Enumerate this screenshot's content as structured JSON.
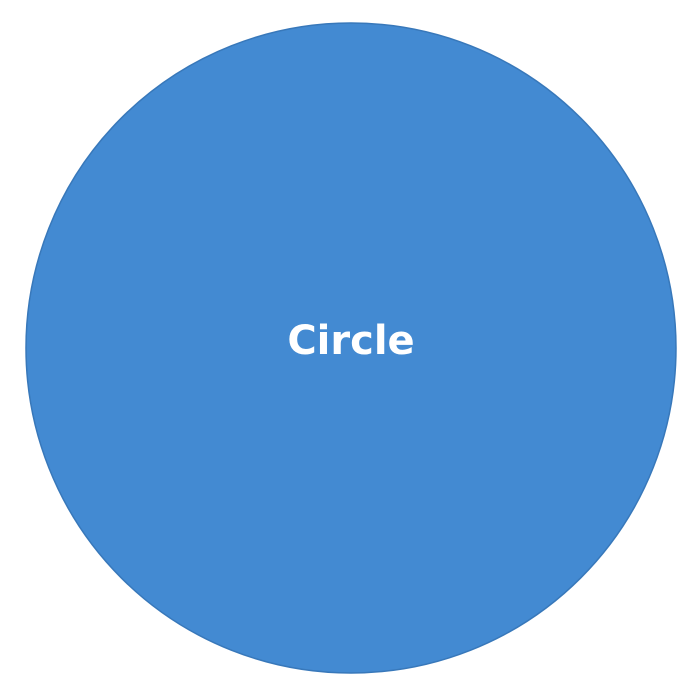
{
  "shape": {
    "type": "circle",
    "label": "Circle",
    "fill_color": "#438ad2",
    "stroke_color": "#3878ba",
    "label_color": "#ffffff"
  }
}
